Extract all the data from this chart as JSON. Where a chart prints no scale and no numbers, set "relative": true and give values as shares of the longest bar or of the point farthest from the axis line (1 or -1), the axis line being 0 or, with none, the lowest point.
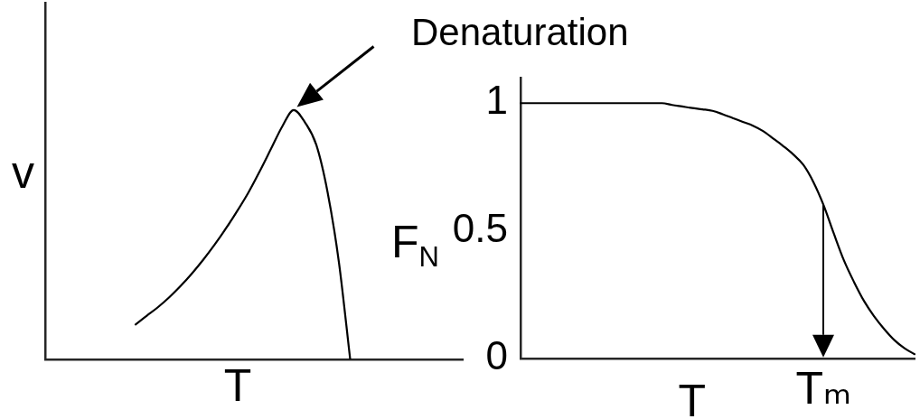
{
  "chart_data": [
    {
      "type": "line",
      "xlabel": "T",
      "ylabel": "v",
      "relative": true,
      "marker": "none",
      "categories": [
        null,
        null,
        null,
        null,
        null,
        null,
        null,
        null,
        null,
        null,
        null,
        null,
        null,
        null,
        null,
        null,
        null,
        null,
        null,
        null,
        null,
        null,
        null,
        null,
        null,
        null,
        null,
        null,
        null,
        null,
        null,
        null,
        null,
        null,
        null,
        null,
        null,
        null
      ],
      "series": [
        {
          "color": "#000000",
          "values": [
            null,
            null,
            null,
            null,
            null,
            null,
            null,
            null,
            0.14,
            0.175,
            0.21,
            0.25,
            0.295,
            0.345,
            0.4,
            0.46,
            0.525,
            0.595,
            0.67,
            0.755,
            0.845,
            0.935,
            1,
            0.95,
            0.86,
            0.67,
            0.39,
            0,
            null,
            null,
            null,
            null,
            null,
            null,
            null,
            null,
            null,
            null
          ]
        }
      ],
      "annotations": [
        "Denaturation"
      ]
    },
    {
      "type": "line",
      "xlabel": "T",
      "ylabel": "F$_{N}$",
      "marker": "none",
      "ylim": [
        0,
        1.1
      ],
      "yticks": [
        0,
        0.5,
        1
      ],
      "categories": [
        null,
        null,
        null,
        null,
        null,
        null,
        null,
        null,
        null,
        null,
        null,
        null,
        null,
        null,
        null,
        null,
        null,
        null,
        null,
        null,
        null,
        null,
        null,
        null,
        null,
        null,
        null,
        null,
        null,
        null,
        "Tₘ",
        null,
        null,
        null,
        null,
        null,
        null,
        null,
        null,
        null
      ],
      "series": [
        {
          "color": "#000000",
          "values": [
            1,
            1,
            1,
            1,
            1,
            1,
            1,
            1,
            1,
            1,
            1,
            1,
            1,
            1,
            1,
            0.993,
            0.987,
            0.981,
            0.976,
            0.97,
            0.957,
            0.942,
            0.927,
            0.912,
            0.891,
            0.862,
            0.832,
            0.799,
            0.758,
            0.69,
            0.6,
            0.49,
            0.385,
            0.3,
            0.225,
            0.165,
            0.115,
            0.072,
            0.04,
            0.017
          ]
        }
      ]
    }
  ]
}
